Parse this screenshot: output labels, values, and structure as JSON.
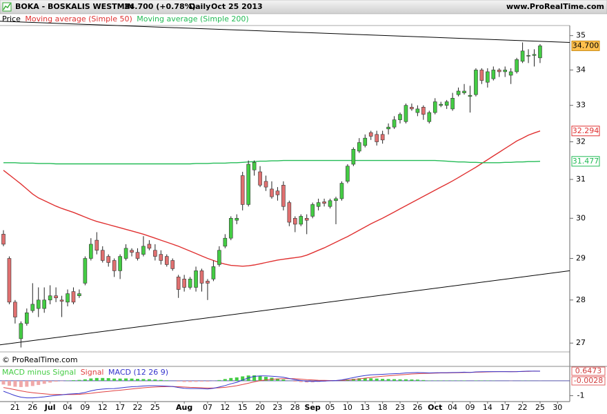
{
  "chart_data": [
    {
      "type": "candlestick",
      "title": "BOKA - BOSKALIS WESTMIN",
      "quote": "34.700 (+0.78%)",
      "period": "Daily",
      "date": "Oct 25 2013",
      "source": "www.ProRealTime.com",
      "copyright": "© ProRealTime.com",
      "name": "Price",
      "up_color": "#44cc44",
      "down_color": "#e07070",
      "log": true,
      "grid": false,
      "ylim": [
        26.8,
        35.3
      ],
      "yticks": [
        27,
        28,
        29,
        30,
        31,
        32,
        33,
        34,
        35
      ],
      "open": [
        29.6,
        29.0,
        27.95,
        27.1,
        27.45,
        27.75,
        27.8,
        27.8,
        28.0,
        28.1,
        28.0,
        27.95,
        28.2,
        28.1,
        28.4,
        29.0,
        29.45,
        29.2,
        29.05,
        28.95,
        28.7,
        29.0,
        29.2,
        29.15,
        29.1,
        29.35,
        29.2,
        29.1,
        29.05,
        28.95,
        28.55,
        28.5,
        28.3,
        28.3,
        28.7,
        28.45,
        28.5,
        28.85,
        29.3,
        29.5,
        29.95,
        31.1,
        30.35,
        31.25,
        31.2,
        30.95,
        30.75,
        30.7,
        30.85,
        30.4,
        30.0,
        29.85,
        30.0,
        30.05,
        30.3,
        30.42,
        30.3,
        30.45,
        30.5,
        30.95,
        31.4,
        31.75,
        31.9,
        32.25,
        32.2,
        32.2,
        32.35,
        32.4,
        32.6,
        32.55,
        32.95,
        32.8,
        32.95,
        32.55,
        32.8,
        33.0,
        33.0,
        32.9,
        33.3,
        33.35,
        33.25,
        33.3,
        34.0,
        33.65,
        33.75,
        34.0,
        33.95,
        33.85,
        33.95,
        34.25,
        34.4,
        34.42,
        34.35,
        null,
        null,
        null
      ],
      "high": [
        29.7,
        29.05,
        28.0,
        27.5,
        27.8,
        28.4,
        28.3,
        28.3,
        28.35,
        28.3,
        28.1,
        28.25,
        28.3,
        28.25,
        29.05,
        29.5,
        29.65,
        29.3,
        29.1,
        29.0,
        29.1,
        29.35,
        29.25,
        29.25,
        29.55,
        29.45,
        29.35,
        29.2,
        29.1,
        29.0,
        28.6,
        28.6,
        28.55,
        28.8,
        28.75,
        28.5,
        28.95,
        29.3,
        29.6,
        30.05,
        30.1,
        31.2,
        31.5,
        31.5,
        31.35,
        31.1,
        30.95,
        30.8,
        30.95,
        30.45,
        30.05,
        30.1,
        30.1,
        30.4,
        30.5,
        30.5,
        30.5,
        30.55,
        30.95,
        31.4,
        31.85,
        32.1,
        32.2,
        32.3,
        32.3,
        32.3,
        32.5,
        32.7,
        32.8,
        33.05,
        33.05,
        33.0,
        33.0,
        32.85,
        33.2,
        33.1,
        33.15,
        33.35,
        33.5,
        33.6,
        33.55,
        34.05,
        34.05,
        34.05,
        34.1,
        34.05,
        34.1,
        34.05,
        34.35,
        34.8,
        34.6,
        34.6,
        34.75,
        null,
        null,
        null
      ],
      "low": [
        29.3,
        27.9,
        27.45,
        26.9,
        27.4,
        27.7,
        27.6,
        27.7,
        27.9,
        27.95,
        27.6,
        27.85,
        27.9,
        28.05,
        28.35,
        28.95,
        29.1,
        28.9,
        28.8,
        28.55,
        28.5,
        28.95,
        29.05,
        28.95,
        29.05,
        29.2,
        28.95,
        28.85,
        28.8,
        28.7,
        28.05,
        28.2,
        28.25,
        28.2,
        28.2,
        28.0,
        28.45,
        28.8,
        29.25,
        29.45,
        29.85,
        30.2,
        30.3,
        31.1,
        30.8,
        30.7,
        30.5,
        30.45,
        30.2,
        29.8,
        29.65,
        29.8,
        29.6,
        30.0,
        30.2,
        30.3,
        30.25,
        29.85,
        30.45,
        30.9,
        31.35,
        31.7,
        31.85,
        32.05,
        31.9,
        31.95,
        32.2,
        32.35,
        32.5,
        32.5,
        32.85,
        32.7,
        32.6,
        32.5,
        32.75,
        32.95,
        32.9,
        32.85,
        33.25,
        33.3,
        32.8,
        33.25,
        33.6,
        33.5,
        33.7,
        33.8,
        33.8,
        33.6,
        33.9,
        34.2,
        34.2,
        34.1,
        34.2,
        null,
        null,
        null
      ],
      "close": [
        29.35,
        27.95,
        27.6,
        27.45,
        27.7,
        27.9,
        28.0,
        28.0,
        28.1,
        28.05,
        27.97,
        28.15,
        27.95,
        28.15,
        29.0,
        29.35,
        29.2,
        28.95,
        28.9,
        28.7,
        29.05,
        29.25,
        29.15,
        29.0,
        29.3,
        29.25,
        29.05,
        28.95,
        28.85,
        28.75,
        28.25,
        28.3,
        28.5,
        28.7,
        28.4,
        28.4,
        28.8,
        29.2,
        29.5,
        30.0,
        30.0,
        30.35,
        31.4,
        31.45,
        30.85,
        30.8,
        30.55,
        30.6,
        30.3,
        29.9,
        29.85,
        30.05,
        29.95,
        30.35,
        30.4,
        30.38,
        30.45,
        30.5,
        30.9,
        31.35,
        31.8,
        31.98,
        32.1,
        32.15,
        32.0,
        32.05,
        32.4,
        32.6,
        32.75,
        33.0,
        32.9,
        32.9,
        32.75,
        32.8,
        33.1,
        33.03,
        33.1,
        33.2,
        33.4,
        33.4,
        33.28,
        34.0,
        33.7,
        33.95,
        34.0,
        33.95,
        34.0,
        33.95,
        34.3,
        34.55,
        34.42,
        34.45,
        34.7,
        null,
        null,
        null
      ],
      "close_label": "34.700",
      "close_label_color": "#ffc04d",
      "series": [
        {
          "name": "Moving average (Simple 50)",
          "color": "#e03030",
          "values": [
            31.24,
            31.12,
            31.0,
            30.88,
            30.75,
            30.62,
            30.52,
            30.45,
            30.38,
            30.31,
            30.25,
            30.2,
            30.15,
            30.09,
            30.03,
            29.97,
            29.92,
            29.88,
            29.84,
            29.8,
            29.76,
            29.72,
            29.68,
            29.64,
            29.6,
            29.55,
            29.5,
            29.45,
            29.4,
            29.35,
            29.3,
            29.24,
            29.18,
            29.12,
            29.06,
            29.0,
            28.95,
            28.9,
            28.86,
            28.83,
            28.82,
            28.81,
            28.82,
            28.84,
            28.87,
            28.9,
            28.93,
            28.96,
            28.98,
            29.0,
            29.02,
            29.04,
            29.08,
            29.14,
            29.2,
            29.26,
            29.33,
            29.4,
            29.47,
            29.54,
            29.62,
            29.7,
            29.78,
            29.86,
            29.93,
            30.0,
            30.08,
            30.16,
            30.24,
            30.32,
            30.4,
            30.48,
            30.56,
            30.64,
            30.72,
            30.8,
            30.88,
            30.96,
            31.05,
            31.14,
            31.23,
            31.32,
            31.42,
            31.52,
            31.62,
            31.72,
            31.82,
            31.92,
            32.02,
            32.1,
            32.18,
            32.24,
            32.294,
            null,
            null,
            null
          ]
        },
        {
          "name": "Moving average (Simple 200)",
          "color": "#22bb55",
          "values": [
            31.44,
            31.44,
            31.44,
            31.43,
            31.43,
            31.43,
            31.42,
            31.42,
            31.42,
            31.41,
            31.41,
            31.41,
            31.41,
            31.41,
            31.41,
            31.41,
            31.41,
            31.41,
            31.41,
            31.41,
            31.41,
            31.41,
            31.41,
            31.41,
            31.41,
            31.41,
            31.41,
            31.41,
            31.41,
            31.41,
            31.41,
            31.41,
            31.41,
            31.42,
            31.42,
            31.42,
            31.43,
            31.43,
            31.43,
            31.44,
            31.44,
            31.45,
            31.46,
            31.47,
            31.48,
            31.48,
            31.49,
            31.49,
            31.5,
            31.5,
            31.5,
            31.5,
            31.5,
            31.5,
            31.5,
            31.5,
            31.5,
            31.5,
            31.5,
            31.5,
            31.5,
            31.5,
            31.5,
            31.5,
            31.5,
            31.5,
            31.5,
            31.5,
            31.5,
            31.5,
            31.5,
            31.5,
            31.5,
            31.5,
            31.5,
            31.49,
            31.48,
            31.47,
            31.46,
            31.46,
            31.45,
            31.45,
            31.44,
            31.44,
            31.44,
            31.44,
            31.45,
            31.45,
            31.46,
            31.46,
            31.47,
            31.47,
            31.477,
            null,
            null,
            null
          ]
        }
      ],
      "trendlines": [
        {
          "color": "#000000",
          "values": [
            35.43,
            34.8
          ]
        },
        {
          "color": "#000000",
          "values": [
            26.96,
            28.7
          ]
        }
      ]
    },
    {
      "type": "combo",
      "ylim": [
        -1.4,
        0.88
      ],
      "yticks": [
        -1
      ],
      "categories": [
        null,
        null,
        "21",
        null,
        null,
        "26",
        null,
        null,
        "Jul",
        null,
        null,
        "04",
        null,
        null,
        "09",
        null,
        null,
        "12",
        null,
        null,
        "17",
        null,
        null,
        "22",
        null,
        null,
        "25",
        null,
        null,
        null,
        null,
        "Aug",
        null,
        null,
        null,
        "07",
        null,
        null,
        "12",
        null,
        null,
        "15",
        null,
        null,
        "20",
        null,
        null,
        "23",
        null,
        null,
        "28",
        null,
        null,
        "Sep",
        null,
        null,
        "05",
        null,
        null,
        "10",
        null,
        null,
        "13",
        null,
        null,
        "18",
        null,
        null,
        "23",
        null,
        null,
        "26",
        null,
        null,
        "Oct",
        null,
        null,
        "04",
        null,
        null,
        "09",
        null,
        null,
        "14",
        null,
        null,
        "17",
        null,
        null,
        "22",
        null,
        null,
        "25",
        null,
        null,
        "30"
      ],
      "series": [
        {
          "name": "MACD minus Signal",
          "type": "bar",
          "color": "#44cc44",
          "negative_color": "#f0a8a8",
          "values": [
            -0.25,
            -0.33,
            -0.4,
            -0.42,
            -0.4,
            -0.35,
            -0.28,
            -0.2,
            -0.12,
            -0.06,
            -0.02,
            0.02,
            0.04,
            0.06,
            0.1,
            0.16,
            0.19,
            0.19,
            0.18,
            0.15,
            0.15,
            0.16,
            0.15,
            0.13,
            0.12,
            0.11,
            0.09,
            0.06,
            0.03,
            0.0,
            -0.05,
            -0.08,
            -0.08,
            -0.07,
            -0.06,
            -0.06,
            -0.01,
            0.05,
            0.12,
            0.19,
            0.23,
            0.3,
            0.36,
            0.37,
            0.32,
            0.27,
            0.21,
            0.15,
            0.09,
            0.01,
            -0.06,
            -0.09,
            -0.11,
            -0.1,
            -0.07,
            -0.05,
            -0.02,
            0.0,
            0.03,
            0.09,
            0.13,
            0.17,
            0.18,
            0.17,
            0.15,
            0.13,
            0.12,
            0.11,
            0.1,
            0.1,
            0.09,
            0.08,
            0.05,
            0.02,
            0.02,
            0.02,
            0.02,
            0.02,
            0.02,
            0.02,
            0.0,
            0.02,
            0.02,
            0.02,
            0.01,
            0.0,
            0.0,
            -0.01,
            0.0,
            0.01,
            0.01,
            0.0,
            -0.0028,
            null,
            null,
            null
          ]
        },
        {
          "name": "Signal",
          "type": "line",
          "color": "#e04040",
          "values": [
            -0.45,
            -0.52,
            -0.6,
            -0.68,
            -0.75,
            -0.8,
            -0.84,
            -0.88,
            -0.91,
            -0.92,
            -0.93,
            -0.92,
            -0.92,
            -0.91,
            -0.88,
            -0.84,
            -0.79,
            -0.75,
            -0.71,
            -0.67,
            -0.63,
            -0.59,
            -0.55,
            -0.51,
            -0.47,
            -0.44,
            -0.42,
            -0.4,
            -0.39,
            -0.38,
            -0.4,
            -0.42,
            -0.44,
            -0.45,
            -0.47,
            -0.49,
            -0.49,
            -0.47,
            -0.44,
            -0.39,
            -0.33,
            -0.25,
            -0.16,
            -0.07,
            0.01,
            0.06,
            0.1,
            0.13,
            0.15,
            0.15,
            0.14,
            0.11,
            0.08,
            0.06,
            0.04,
            0.03,
            0.02,
            0.02,
            0.03,
            0.05,
            0.09,
            0.13,
            0.18,
            0.23,
            0.27,
            0.31,
            0.34,
            0.37,
            0.4,
            0.43,
            0.46,
            0.48,
            0.5,
            0.51,
            0.52,
            0.53,
            0.53,
            0.54,
            0.55,
            0.56,
            0.57,
            0.58,
            0.59,
            0.6,
            0.61,
            0.62,
            0.62,
            0.62,
            0.62,
            0.63,
            0.64,
            0.65,
            0.65,
            null,
            null,
            null
          ]
        },
        {
          "name": "MACD (12 26 9)",
          "type": "line",
          "color": "#3333cc",
          "values": [
            -0.7,
            -0.85,
            -1.0,
            -1.1,
            -1.15,
            -1.15,
            -1.12,
            -1.08,
            -1.03,
            -0.98,
            -0.95,
            -0.9,
            -0.88,
            -0.85,
            -0.78,
            -0.68,
            -0.6,
            -0.56,
            -0.53,
            -0.52,
            -0.48,
            -0.43,
            -0.4,
            -0.38,
            -0.35,
            -0.33,
            -0.33,
            -0.34,
            -0.36,
            -0.38,
            -0.45,
            -0.5,
            -0.52,
            -0.52,
            -0.53,
            -0.55,
            -0.5,
            -0.42,
            -0.32,
            -0.2,
            -0.1,
            0.05,
            0.2,
            0.3,
            0.33,
            0.33,
            0.31,
            0.28,
            0.24,
            0.16,
            0.08,
            0.02,
            -0.03,
            -0.04,
            -0.03,
            -0.02,
            0.0,
            0.02,
            0.06,
            0.14,
            0.22,
            0.3,
            0.36,
            0.4,
            0.42,
            0.44,
            0.46,
            0.48,
            0.5,
            0.53,
            0.55,
            0.56,
            0.55,
            0.53,
            0.54,
            0.55,
            0.55,
            0.56,
            0.57,
            0.58,
            0.57,
            0.6,
            0.61,
            0.62,
            0.62,
            0.62,
            0.62,
            0.61,
            0.62,
            0.64,
            0.65,
            0.65,
            0.6473,
            null,
            null,
            null
          ]
        }
      ]
    }
  ]
}
